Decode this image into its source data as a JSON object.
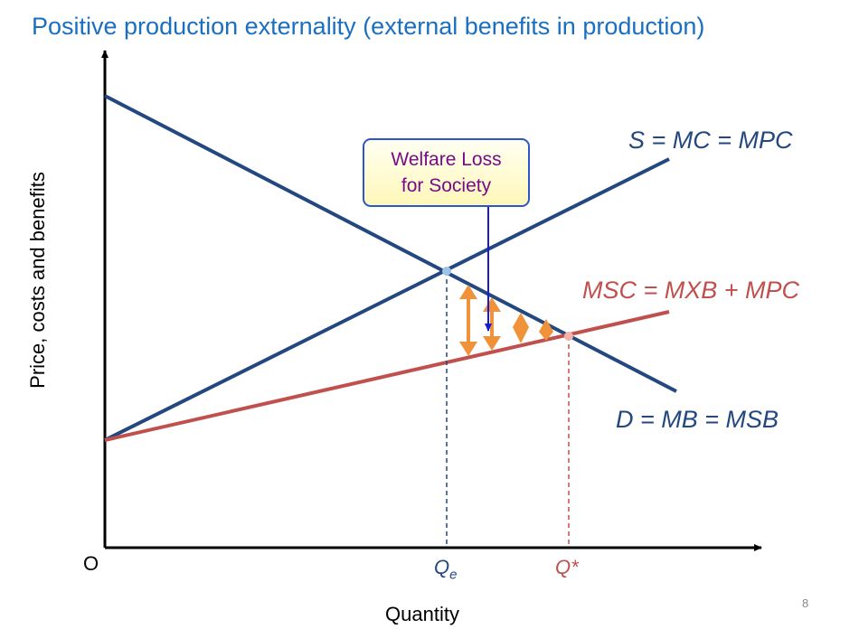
{
  "title": "Positive production externality (external benefits in production)",
  "axes": {
    "y_label": "Price, costs and benefits",
    "x_label": "Quantity",
    "origin_label": "O"
  },
  "quantities": {
    "qe_main": "Q",
    "qe_sub": "e",
    "q_star": "Q*"
  },
  "curves": {
    "supply": "S = MC = MPC",
    "social_cost": "MSC = MXB + MPC",
    "demand": "D = MB = MSB"
  },
  "callout": {
    "line1": "Welfare Loss",
    "line2": "for Society"
  },
  "page_number": "8",
  "colors": {
    "title": "#1a6fc0",
    "private_curves": "#23477f",
    "social_curve": "#c0504d",
    "arrows": "#f0923a",
    "callout_text": "#7a0a8a",
    "callout_border": "#2b57c8"
  }
}
